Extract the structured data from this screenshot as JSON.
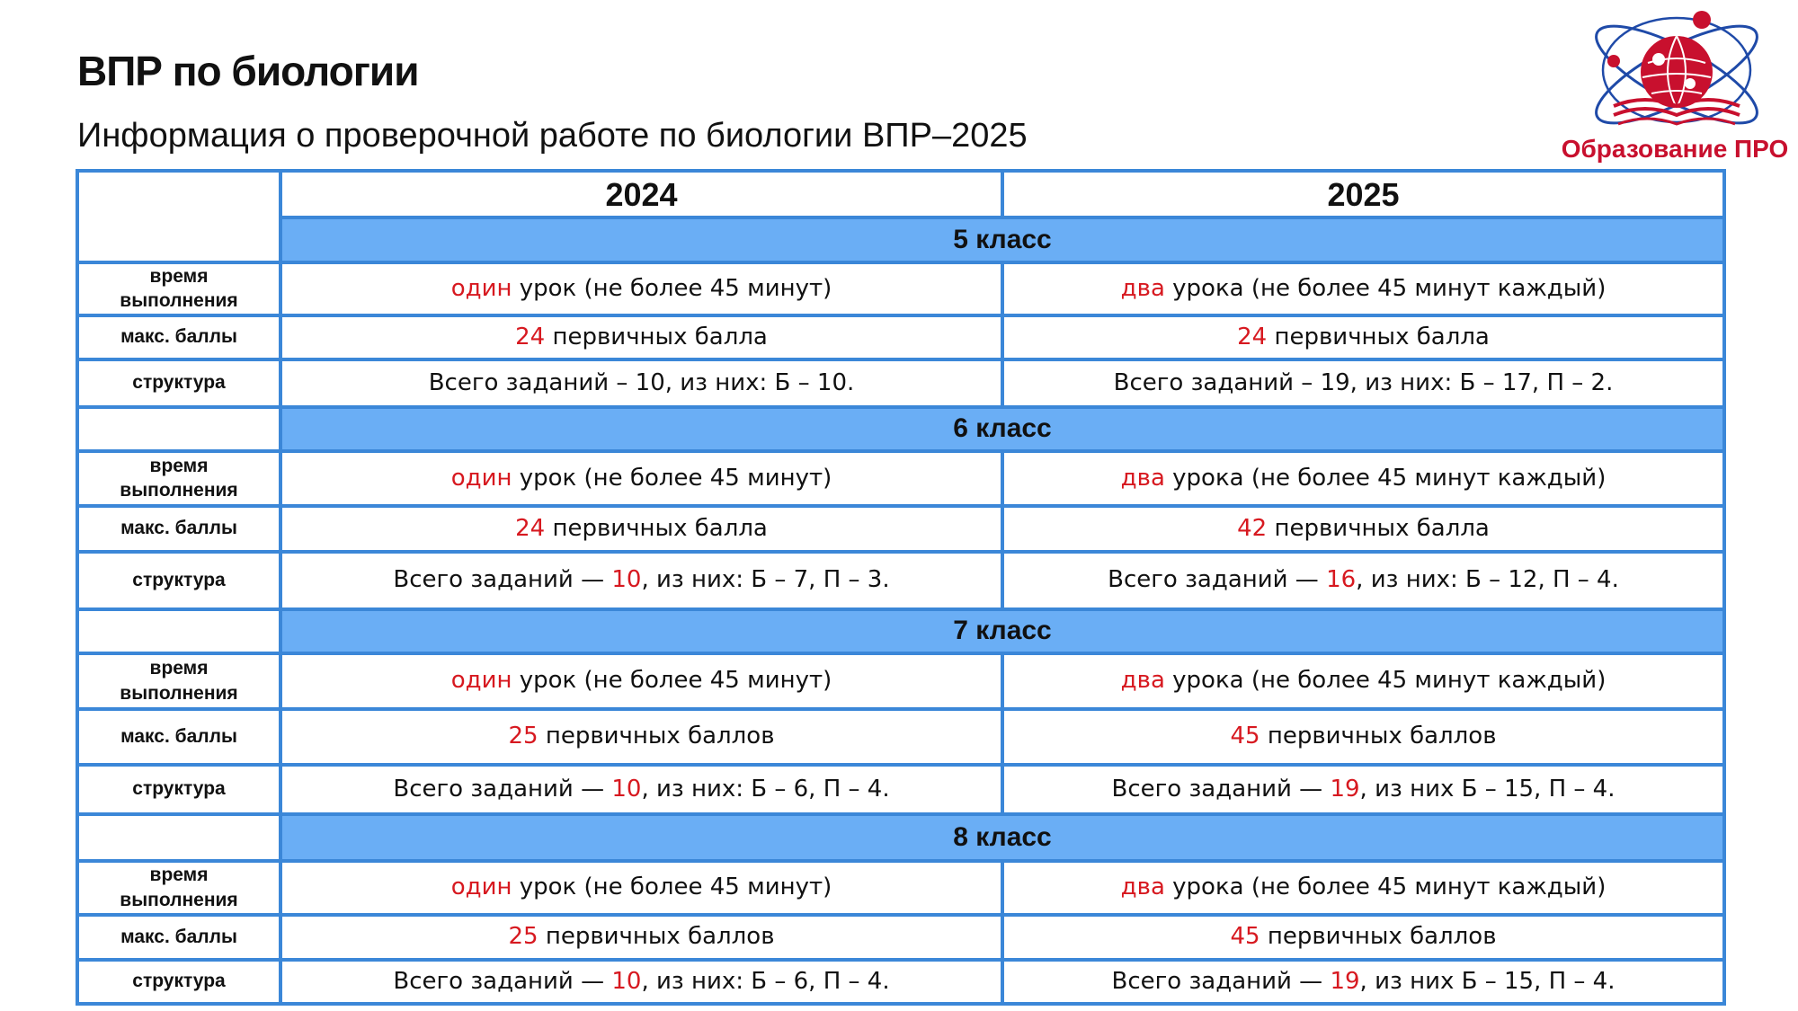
{
  "page": {
    "title": "ВПР по биологии",
    "subtitle": "Информация о проверочной работе по биологии ВПР–2025"
  },
  "logo": {
    "text": "Образование ПРО",
    "color": "#c8102e"
  },
  "colors": {
    "border": "#3b87d8",
    "grade_fill": "#6aaef5",
    "highlight": "#d71920"
  },
  "table": {
    "years": [
      "2024",
      "2025"
    ],
    "row_labels": {
      "time_1": "время",
      "time_2": "выполнения",
      "max": "макс. баллы",
      "structure": "структура"
    },
    "grades": [
      {
        "label": "5 класс",
        "time": {
          "y2024": {
            "hl": "один",
            "rest": " урок (не более 45 минут)"
          },
          "y2025": {
            "hl": "два",
            "rest": " урока (не более 45 минут каждый)"
          }
        },
        "max": {
          "y2024": {
            "hl": "24",
            "rest": " первичных балла"
          },
          "y2025": {
            "hl": "24",
            "rest": " первичных балла"
          }
        },
        "structure": {
          "y2024": {
            "pre": "Всего заданий – 10, из них: Б – 10.",
            "hl": "",
            "post": ""
          },
          "y2025": {
            "pre": "Всего заданий – 19, из них: Б – 17, П – 2.",
            "hl": "",
            "post": ""
          }
        }
      },
      {
        "label": "6 класс",
        "time": {
          "y2024": {
            "hl": "один",
            "rest": " урок (не более 45 минут)"
          },
          "y2025": {
            "hl": "два",
            "rest": " урока (не более 45 минут каждый)"
          }
        },
        "max": {
          "y2024": {
            "hl": "24",
            "rest": " первичных балла"
          },
          "y2025": {
            "hl": "42",
            "rest": " первичных балла"
          }
        },
        "structure": {
          "y2024": {
            "pre": "Всего заданий — ",
            "hl": "10",
            "post": ", из них: Б – 7, П – 3."
          },
          "y2025": {
            "pre": "Всего заданий — ",
            "hl": "16",
            "post": ", из них: Б – 12, П – 4."
          }
        }
      },
      {
        "label": "7 класс",
        "time": {
          "y2024": {
            "hl": "один",
            "rest": " урок (не более 45 минут)"
          },
          "y2025": {
            "hl": "два",
            "rest": " урока (не более 45 минут каждый)"
          }
        },
        "max": {
          "y2024": {
            "hl": "25",
            "rest": " первичных баллов"
          },
          "y2025": {
            "hl": "45",
            "rest": " первичных баллов"
          }
        },
        "structure": {
          "y2024": {
            "pre": "Всего заданий — ",
            "hl": "10",
            "post": ", из них: Б – 6, П – 4."
          },
          "y2025": {
            "pre": "Всего заданий — ",
            "hl": "19",
            "post": ", из них Б – 15, П – 4."
          }
        }
      },
      {
        "label": "8 класс",
        "time": {
          "y2024": {
            "hl": "один",
            "rest": " урок (не более 45 минут)"
          },
          "y2025": {
            "hl": "два",
            "rest": " урока (не более 45 минут каждый)"
          }
        },
        "max": {
          "y2024": {
            "hl": "25",
            "rest": " первичных баллов"
          },
          "y2025": {
            "hl": "45",
            "rest": " первичных баллов"
          }
        },
        "structure": {
          "y2024": {
            "pre": "Всего заданий — ",
            "hl": "10",
            "post": ", из них: Б – 6, П – 4."
          },
          "y2025": {
            "pre": "Всего заданий — ",
            "hl": "19",
            "post": ", из них Б – 15, П – 4."
          }
        }
      }
    ]
  }
}
